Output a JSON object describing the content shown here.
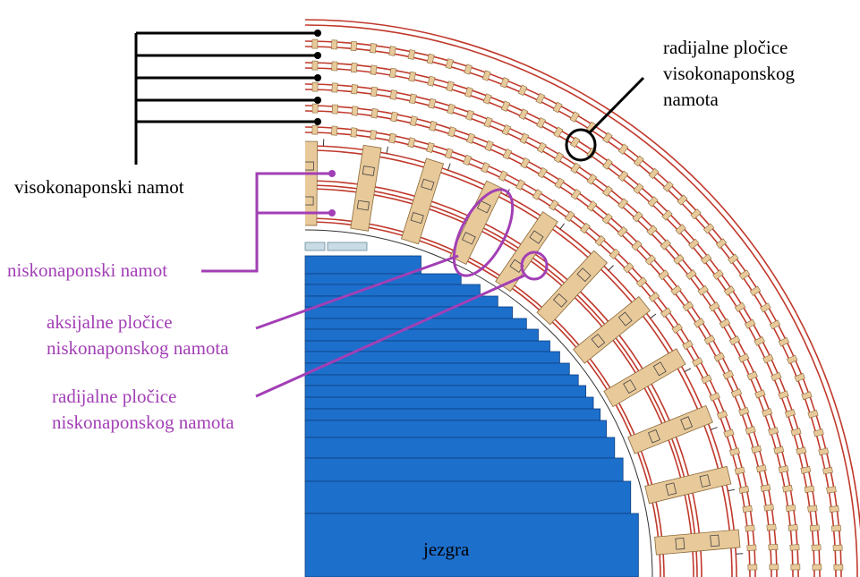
{
  "labels": {
    "hv_winding": "visokonaponski namot",
    "hv_radial_spacers": [
      "radijalne pločice",
      "visokonaponskog",
      "namota"
    ],
    "lv_winding": "niskonaponski namot",
    "lv_axial_spacers": [
      "aksijalne pločice",
      "niskonaponskog namota"
    ],
    "lv_radial_spacers": [
      "radijalne pločice",
      "niskonaponskog namota"
    ],
    "core": "jezgra"
  },
  "colors": {
    "core": "#1d6fcc",
    "core_edge": "#0d3f80",
    "winding": "#c0392b",
    "spacer": "#e8c99a",
    "spacer_edge": "#8a6a3a",
    "purple": "#a23fb5",
    "black": "#000000",
    "pressboard": "#c9dbe5"
  }
}
